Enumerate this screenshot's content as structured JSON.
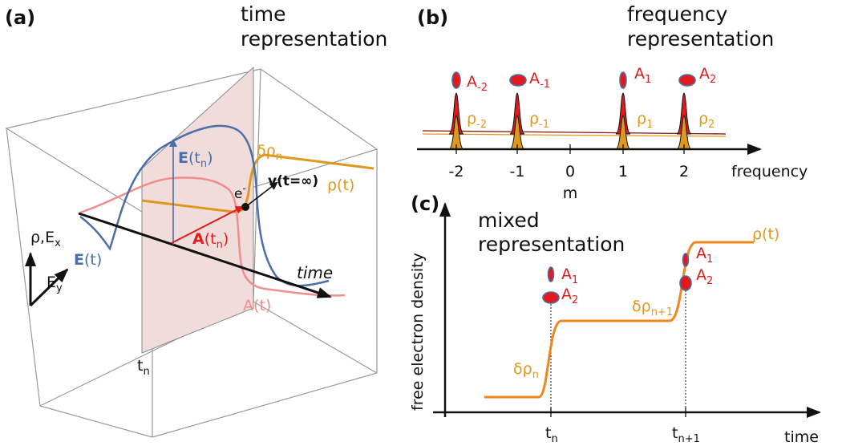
{
  "panel_a": {
    "label": "(a)",
    "title_line1": "time",
    "title_line2": "representation",
    "E_tn": "E",
    "E_tn_arg": "(t",
    "E_tn_sub": "n",
    "E_tn_close": ")",
    "E_t": "E",
    "E_t_arg": "(t)",
    "A_tn": "A",
    "A_tn_arg": "(t",
    "A_tn_sub": "n",
    "A_tn_close": ")",
    "A_t": "A(t)",
    "rho_t": "ρ(t)",
    "delta_rho": "δρ",
    "delta_rho_sub": "n",
    "electron": "e",
    "electron_sup": "-",
    "velocity": "v(t=∞)",
    "time_axis": "time",
    "tn": "t",
    "tn_sub": "n",
    "rho_Ex": "ρ,E",
    "rho_Ex_sub": "x",
    "Ey": "E",
    "Ey_sub": "y"
  },
  "panel_b": {
    "label": "(b)",
    "title_line1": "frequency",
    "title_line2": "representation",
    "axis_label": "frequency",
    "m_label": "m",
    "ticks": [
      "-2",
      "-1",
      "0",
      "1",
      "2"
    ],
    "A_labels": [
      {
        "base": "A",
        "sub": "-2"
      },
      {
        "base": "A",
        "sub": "-1"
      },
      {
        "base": "A",
        "sub": "1"
      },
      {
        "base": "A",
        "sub": "2"
      }
    ],
    "rho_labels": [
      {
        "base": "ρ",
        "sub": "-2"
      },
      {
        "base": "ρ",
        "sub": "-1"
      },
      {
        "base": "ρ",
        "sub": "1"
      },
      {
        "base": "ρ",
        "sub": "2"
      }
    ]
  },
  "panel_c": {
    "label": "(c)",
    "title_line1": "mixed",
    "title_line2": "representation",
    "y_label": "free electron density",
    "x_label": "time",
    "rho_t": "ρ(t)",
    "A1": {
      "base": "A",
      "sub": "1"
    },
    "A2": {
      "base": "A",
      "sub": "2"
    },
    "delta_rho_n": {
      "base": "δρ",
      "sub": "n"
    },
    "delta_rho_n1": {
      "base": "δρ",
      "sub": "n+1"
    },
    "tn": {
      "base": "t",
      "sub": "n"
    },
    "tn1": {
      "base": "t",
      "sub": "n+1"
    }
  },
  "colors": {
    "A": "#e31a1c",
    "E": "#4a6fa8",
    "A_curve": "#f08d8d",
    "rho": "#e0981c",
    "plane": "#f1dcdc"
  }
}
